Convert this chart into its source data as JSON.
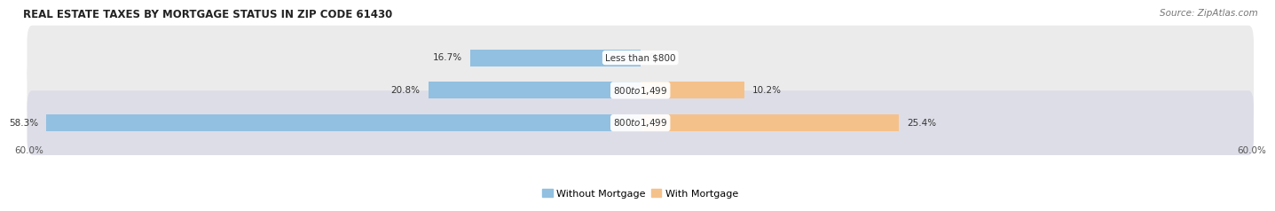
{
  "title": "REAL ESTATE TAXES BY MORTGAGE STATUS IN ZIP CODE 61430",
  "source": "Source: ZipAtlas.com",
  "rows": [
    {
      "label": "Less than $800",
      "without_mortgage": 16.7,
      "with_mortgage": 0.0
    },
    {
      "label": "$800 to $1,499",
      "without_mortgage": 20.8,
      "with_mortgage": 10.2
    },
    {
      "label": "$800 to $1,499",
      "without_mortgage": 58.3,
      "with_mortgage": 25.4
    }
  ],
  "x_max": 60.0,
  "color_without": "#92C0E0",
  "color_with": "#F5C18A",
  "row_bg_colors": [
    "#EBEBEB",
    "#EBEBEB",
    "#DDDDE8"
  ],
  "row_border_color": "#CCCCCC",
  "title_fontsize": 8.5,
  "source_fontsize": 7.5,
  "label_fontsize": 7.5,
  "tick_fontsize": 7.5,
  "legend_fontsize": 8,
  "bar_height": 0.52
}
